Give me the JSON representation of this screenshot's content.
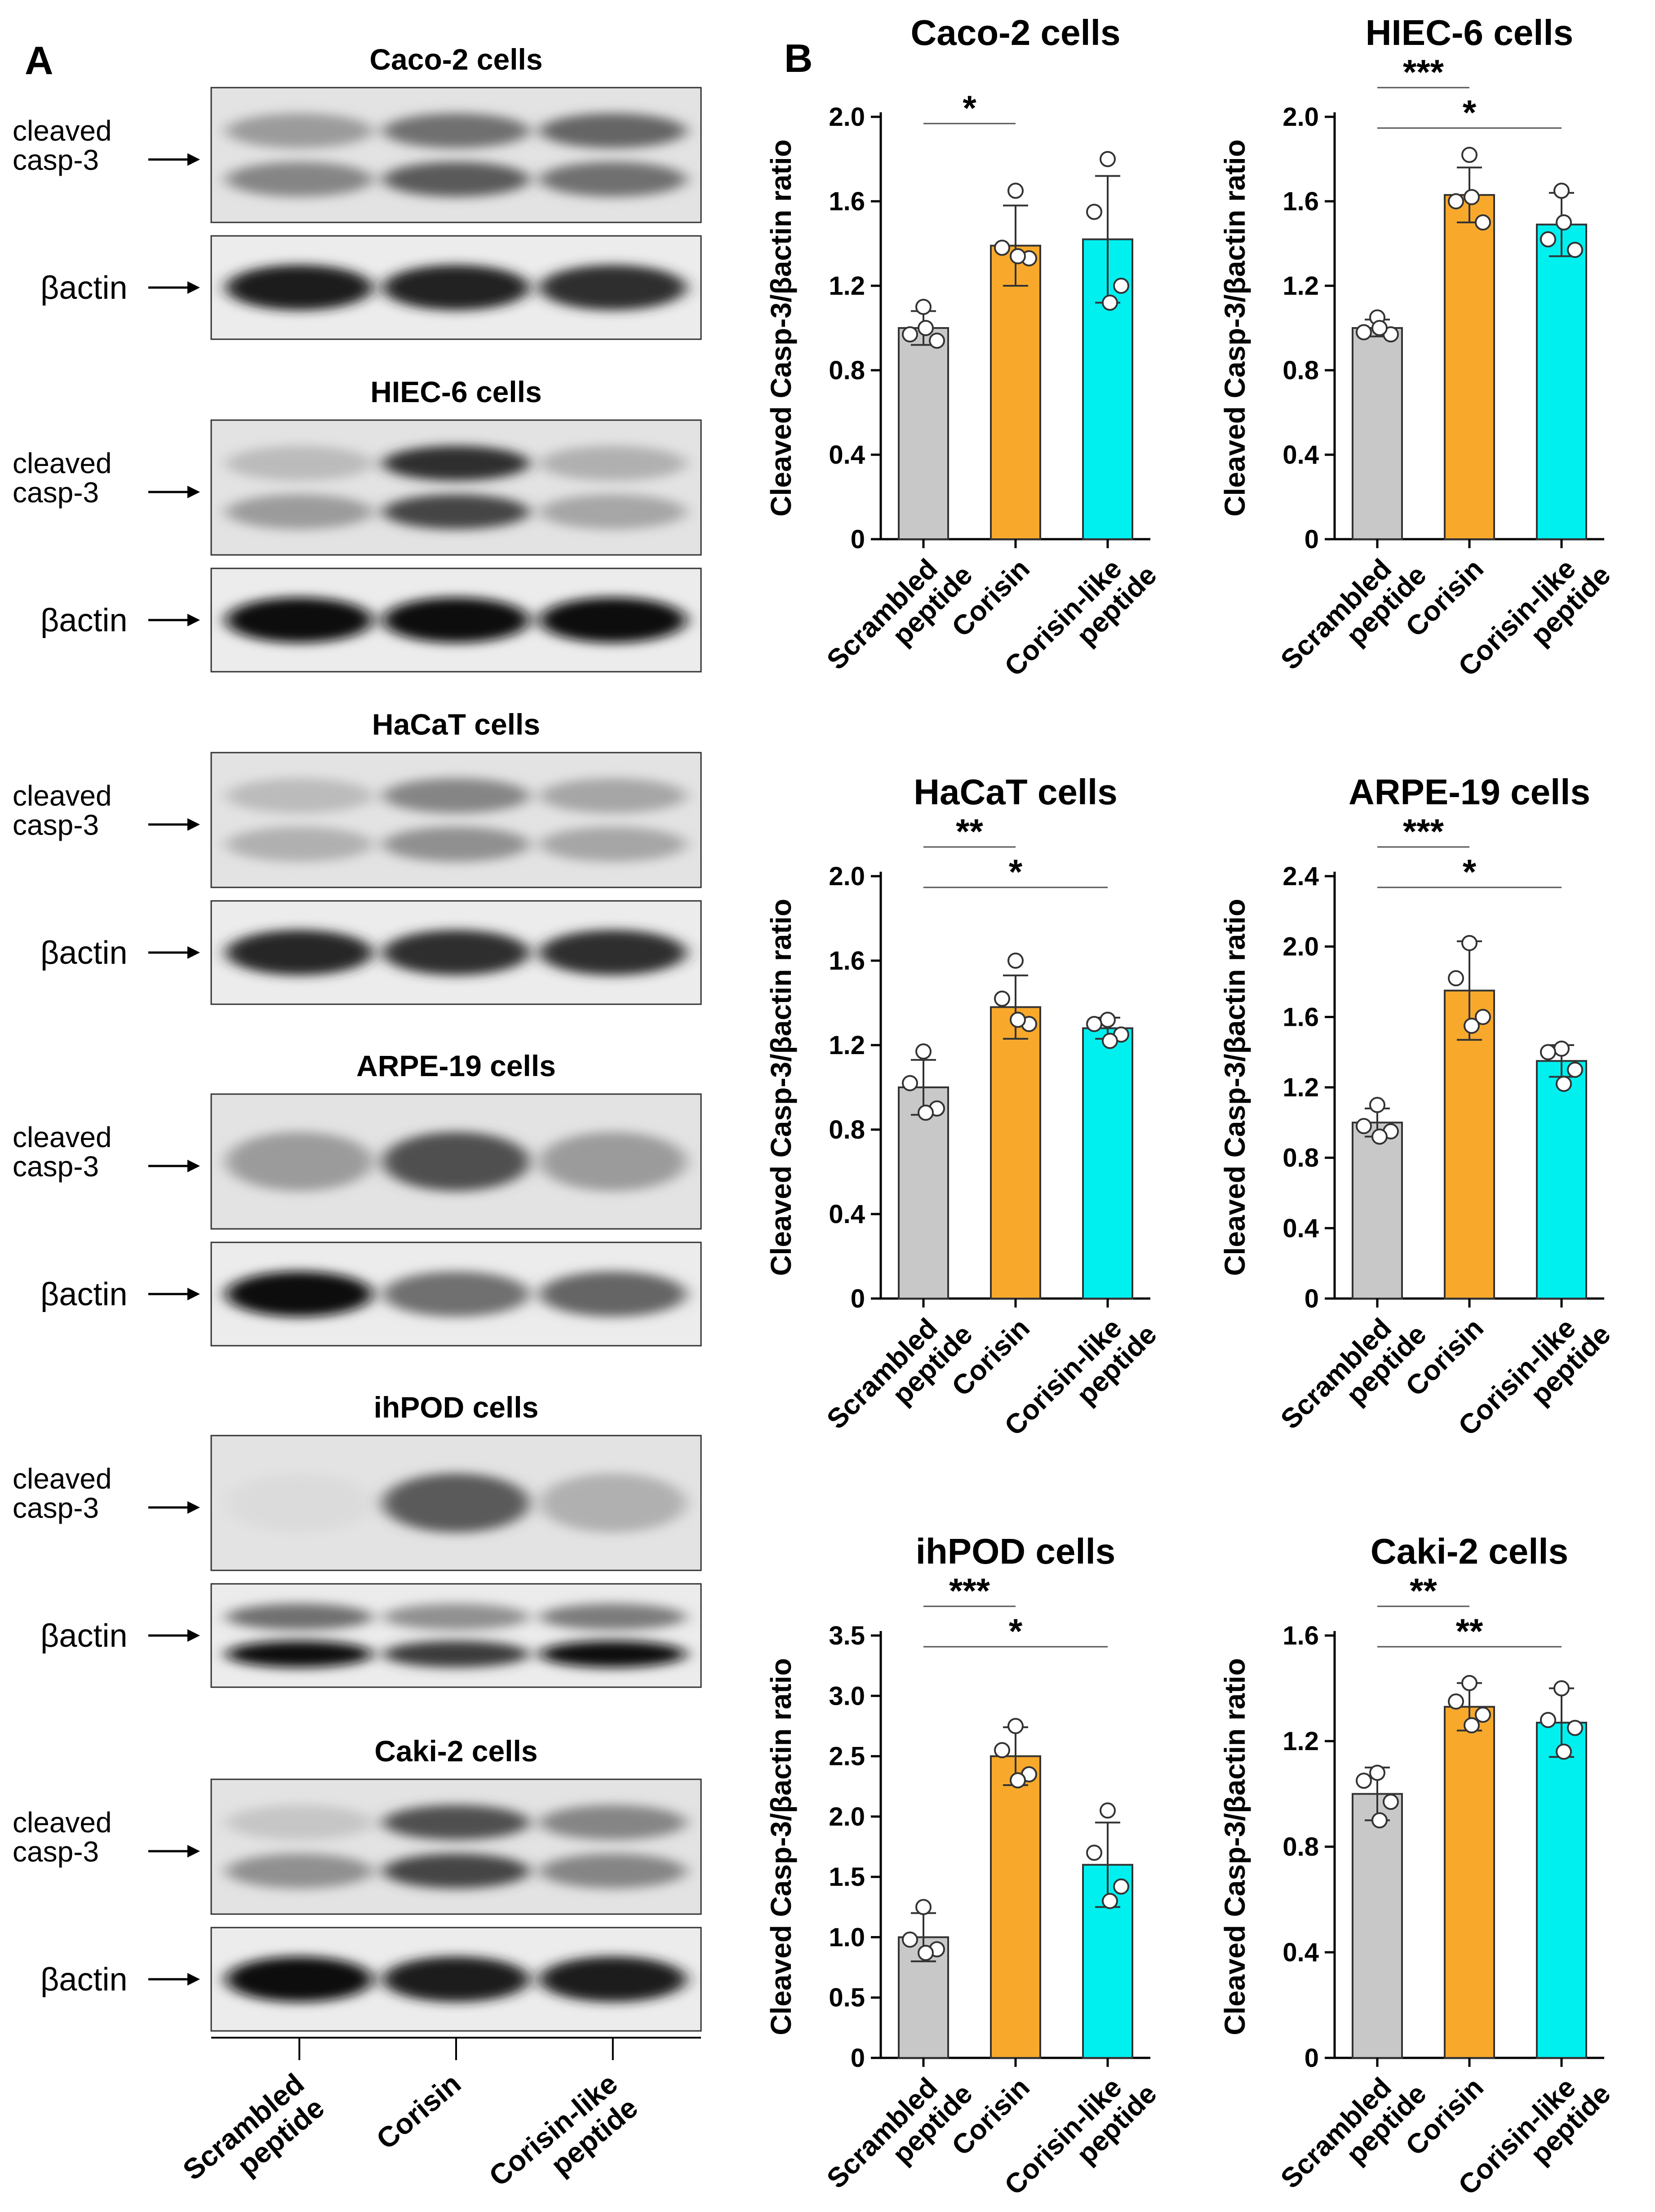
{
  "panel_labels": {
    "a": "A",
    "b": "B"
  },
  "blot_panel": {
    "band_labels": {
      "cleaved": [
        "cleaved",
        "casp-3"
      ],
      "actin": "βactin"
    },
    "lane_labels": [
      [
        "Scrambled",
        "peptide"
      ],
      [
        "Corisin"
      ],
      [
        "Corisin-like",
        "peptide"
      ]
    ],
    "blots": [
      {
        "title": "Caco-2 cells",
        "cleaved_bands": [
          [
            0.35,
            0.55,
            0.6
          ],
          [
            0.45,
            0.65,
            0.55
          ]
        ],
        "actin_bands": [
          [
            0.95,
            0.92,
            0.85
          ]
        ]
      },
      {
        "title": "HIEC-6 cells",
        "cleaved_bands": [
          [
            0.2,
            0.85,
            0.25
          ],
          [
            0.35,
            0.75,
            0.3
          ]
        ],
        "actin_bands": [
          [
            1.0,
            1.0,
            1.0
          ]
        ]
      },
      {
        "title": "HaCaT cells",
        "cleaved_bands": [
          [
            0.2,
            0.45,
            0.3
          ],
          [
            0.25,
            0.4,
            0.3
          ]
        ],
        "actin_bands": [
          [
            0.9,
            0.85,
            0.85
          ]
        ]
      },
      {
        "title": "ARPE-19 cells",
        "cleaved_bands": [
          [
            0.35,
            0.7,
            0.35
          ]
        ],
        "actin_bands": [
          [
            1.0,
            0.55,
            0.6
          ]
        ]
      },
      {
        "title": "ihPOD cells",
        "cleaved_bands": [
          [
            0.05,
            0.65,
            0.25
          ]
        ],
        "actin_bands": [
          [
            0.55,
            0.4,
            0.5
          ],
          [
            1.0,
            0.8,
            1.0
          ]
        ]
      },
      {
        "title": "Caki-2 cells",
        "cleaved_bands": [
          [
            0.15,
            0.7,
            0.45
          ],
          [
            0.4,
            0.75,
            0.45
          ]
        ],
        "actin_bands": [
          [
            1.0,
            0.95,
            0.95
          ]
        ]
      }
    ]
  },
  "colors": {
    "scrambled": "#c8c8c8",
    "corisin": "#f8a92c",
    "corisin_like": "#00f0f0"
  },
  "chart_data": [
    {
      "type": "bar",
      "title": "Caco-2 cells",
      "categories": [
        [
          "Scrambled",
          "peptide"
        ],
        [
          "Corisin"
        ],
        [
          "Corisin-like",
          "peptide"
        ]
      ],
      "values": [
        1.0,
        1.39,
        1.42
      ],
      "errors": [
        0.08,
        0.19,
        0.3
      ],
      "points": [
        [
          1.1,
          0.97,
          0.94,
          1.0
        ],
        [
          1.65,
          1.38,
          1.33,
          1.34
        ],
        [
          1.8,
          1.55,
          1.2,
          1.12
        ]
      ],
      "ylabel": "Cleaved Casp-3/βactin ratio",
      "ylim": [
        0,
        2.0
      ],
      "yticks": [
        "0",
        "0.4",
        "0.8",
        "1.2",
        "1.6",
        "2.0"
      ],
      "significance": [
        {
          "from": 0,
          "to": 1,
          "label": "*"
        }
      ]
    },
    {
      "type": "bar",
      "title": "HIEC-6 cells",
      "categories": [
        [
          "Scrambled",
          "peptide"
        ],
        [
          "Corisin"
        ],
        [
          "Corisin-like",
          "peptide"
        ]
      ],
      "values": [
        1.0,
        1.63,
        1.49
      ],
      "errors": [
        0.04,
        0.13,
        0.15
      ],
      "points": [
        [
          1.05,
          0.98,
          0.97,
          1.0
        ],
        [
          1.82,
          1.6,
          1.5,
          1.62
        ],
        [
          1.65,
          1.42,
          1.37,
          1.5
        ]
      ],
      "ylabel": "Cleaved Casp-3/βactin ratio",
      "ylim": [
        0,
        2.0
      ],
      "yticks": [
        "0",
        "0.4",
        "0.8",
        "1.2",
        "1.6",
        "2.0"
      ],
      "significance": [
        {
          "from": 0,
          "to": 1,
          "label": "***"
        },
        {
          "from": 0,
          "to": 2,
          "label": "*"
        }
      ]
    },
    {
      "type": "bar",
      "title": "HaCaT cells",
      "categories": [
        [
          "Scrambled",
          "peptide"
        ],
        [
          "Corisin"
        ],
        [
          "Corisin-like",
          "peptide"
        ]
      ],
      "values": [
        1.0,
        1.38,
        1.28
      ],
      "errors": [
        0.13,
        0.15,
        0.05
      ],
      "points": [
        [
          1.17,
          1.02,
          0.9,
          0.88
        ],
        [
          1.6,
          1.42,
          1.3,
          1.32
        ],
        [
          1.32,
          1.3,
          1.25,
          1.22
        ]
      ],
      "ylabel": "Cleaved Casp-3/βactin ratio",
      "ylim": [
        0,
        2.0
      ],
      "yticks": [
        "0",
        "0.4",
        "0.8",
        "1.2",
        "1.6",
        "2.0"
      ],
      "significance": [
        {
          "from": 0,
          "to": 1,
          "label": "**"
        },
        {
          "from": 0,
          "to": 2,
          "label": "*"
        }
      ]
    },
    {
      "type": "bar",
      "title": "ARPE-19 cells",
      "categories": [
        [
          "Scrambled",
          "peptide"
        ],
        [
          "Corisin"
        ],
        [
          "Corisin-like",
          "peptide"
        ]
      ],
      "values": [
        1.0,
        1.75,
        1.35
      ],
      "errors": [
        0.08,
        0.28,
        0.09
      ],
      "points": [
        [
          1.1,
          0.98,
          0.95,
          0.92
        ],
        [
          2.02,
          1.82,
          1.6,
          1.55
        ],
        [
          1.42,
          1.4,
          1.3,
          1.22
        ]
      ],
      "ylabel": "Cleaved Casp-3/βactin ratio",
      "ylim": [
        0,
        2.4
      ],
      "yticks": [
        "0",
        "0.4",
        "0.8",
        "1.2",
        "1.6",
        "2.0",
        "2.4"
      ],
      "significance": [
        {
          "from": 0,
          "to": 1,
          "label": "***"
        },
        {
          "from": 0,
          "to": 2,
          "label": "*"
        }
      ]
    },
    {
      "type": "bar",
      "title": "ihPOD cells",
      "categories": [
        [
          "Scrambled",
          "peptide"
        ],
        [
          "Corisin"
        ],
        [
          "Corisin-like",
          "peptide"
        ]
      ],
      "values": [
        1.0,
        2.5,
        1.6
      ],
      "errors": [
        0.2,
        0.24,
        0.35
      ],
      "points": [
        [
          1.25,
          0.98,
          0.9,
          0.87
        ],
        [
          2.75,
          2.55,
          2.35,
          2.3
        ],
        [
          2.05,
          1.7,
          1.42,
          1.3
        ]
      ],
      "ylabel": "Cleaved Casp-3/βactin ratio",
      "ylim": [
        0,
        3.5
      ],
      "yticks": [
        "0",
        "0.5",
        "1.0",
        "1.5",
        "2.0",
        "2.5",
        "3.0",
        "3.5"
      ],
      "significance": [
        {
          "from": 0,
          "to": 1,
          "label": "***"
        },
        {
          "from": 0,
          "to": 2,
          "label": "*"
        }
      ]
    },
    {
      "type": "bar",
      "title": "Caki-2 cells",
      "categories": [
        [
          "Scrambled",
          "peptide"
        ],
        [
          "Corisin"
        ],
        [
          "Corisin-like",
          "peptide"
        ]
      ],
      "values": [
        1.0,
        1.33,
        1.27
      ],
      "errors": [
        0.1,
        0.09,
        0.13
      ],
      "points": [
        [
          1.08,
          1.05,
          0.97,
          0.9
        ],
        [
          1.42,
          1.35,
          1.3,
          1.26
        ],
        [
          1.4,
          1.28,
          1.25,
          1.16
        ]
      ],
      "ylabel": "Cleaved Casp-3/βactin ratio",
      "ylim": [
        0,
        1.6
      ],
      "yticks": [
        "0",
        "0.4",
        "0.8",
        "1.2",
        "1.6"
      ],
      "significance": [
        {
          "from": 0,
          "to": 1,
          "label": "**"
        },
        {
          "from": 0,
          "to": 2,
          "label": "**"
        }
      ]
    }
  ]
}
